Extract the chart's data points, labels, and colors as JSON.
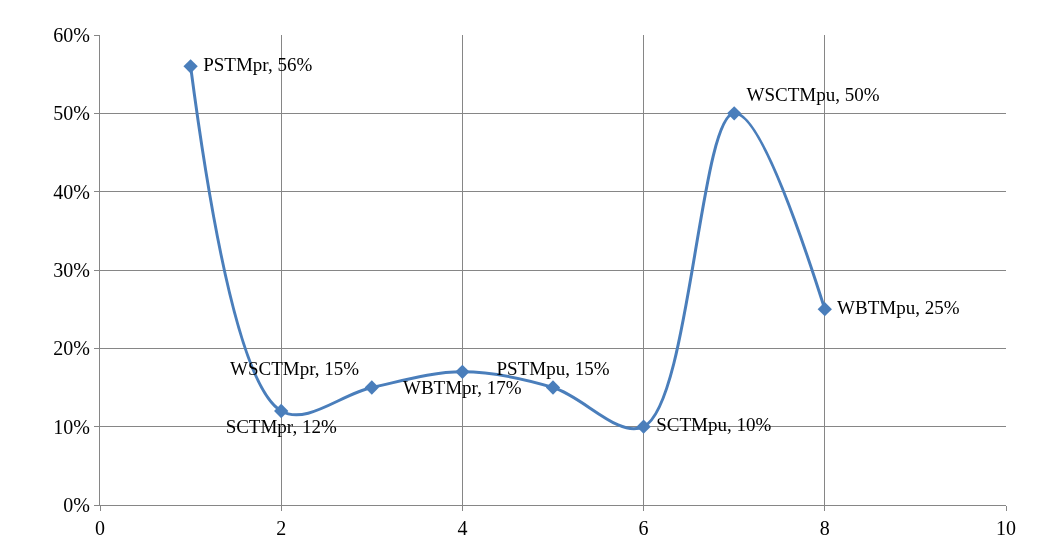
{
  "chart_data": {
    "type": "line",
    "x": [
      1,
      2,
      3,
      4,
      5,
      6,
      7,
      8
    ],
    "series": [
      {
        "color": "#4a7ebb",
        "values": [
          56,
          12,
          15,
          17,
          15,
          10,
          50,
          25
        ],
        "value_labels": [
          "PSTMpr, 56%",
          "SCTMpr, 12%",
          "WSCTMpr, 15%",
          "WBTMpr, 17%",
          "PSTMpu, 15%",
          "SCTMpu, 10%",
          "WSCTMpu, 50%",
          "WBTMpu, 25%"
        ]
      }
    ],
    "xlim": [
      0,
      10
    ],
    "xticks": [
      0,
      2,
      4,
      6,
      8,
      10
    ],
    "ylim": [
      0,
      60
    ],
    "yticks": [
      {
        "value": 0,
        "label": "0%"
      },
      {
        "value": 10,
        "label": "10%"
      },
      {
        "value": 20,
        "label": "20%"
      },
      {
        "value": 30,
        "label": "30%"
      },
      {
        "value": 40,
        "label": "40%"
      },
      {
        "value": 50,
        "label": "50%"
      },
      {
        "value": 60,
        "label": "60%"
      }
    ],
    "grid": true,
    "marker": "diamond",
    "line_style": "solid",
    "legend": false
  }
}
